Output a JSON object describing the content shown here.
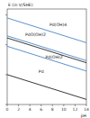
{
  "chart_data": {
    "type": "line",
    "y_label": "E (in V/SHE)",
    "x_label": "pH",
    "xlim": [
      0,
      14
    ],
    "xticks": [
      0,
      2,
      4,
      6,
      8,
      10,
      12,
      14
    ],
    "ylim": [
      -1,
      2.2
    ],
    "yticks": [
      -1,
      0,
      1,
      2
    ],
    "tick_labels": "x",
    "series": [
      {
        "color": "#4a86c8",
        "x": [
          0,
          14
        ],
        "values": [
          1.9,
          1.07
        ]
      },
      {
        "color": "#4a86c8",
        "x": [
          0,
          14
        ],
        "values": [
          1.3,
          0.47
        ]
      },
      {
        "color": "#4a86c8",
        "x": [
          0,
          14
        ],
        "values": [
          0.95,
          0.12
        ]
      },
      {
        "color": "#222222",
        "x": [
          0,
          14
        ],
        "values": [
          1.23,
          0.4
        ]
      },
      {
        "color": "#222222",
        "x": [
          0,
          14
        ],
        "values": [
          0,
          -0.83
        ]
      }
    ],
    "annotations": [
      {
        "text": "Pd(OH)4",
        "x": 9,
        "y": 1.62
      },
      {
        "text": "PdO(OH)2",
        "x": 5,
        "y": 1.3
      },
      {
        "text": "Pd(OH)2",
        "x": 8.3,
        "y": 0.53
      },
      {
        "text": "Pd",
        "x": 6,
        "y": 0.05
      }
    ]
  }
}
